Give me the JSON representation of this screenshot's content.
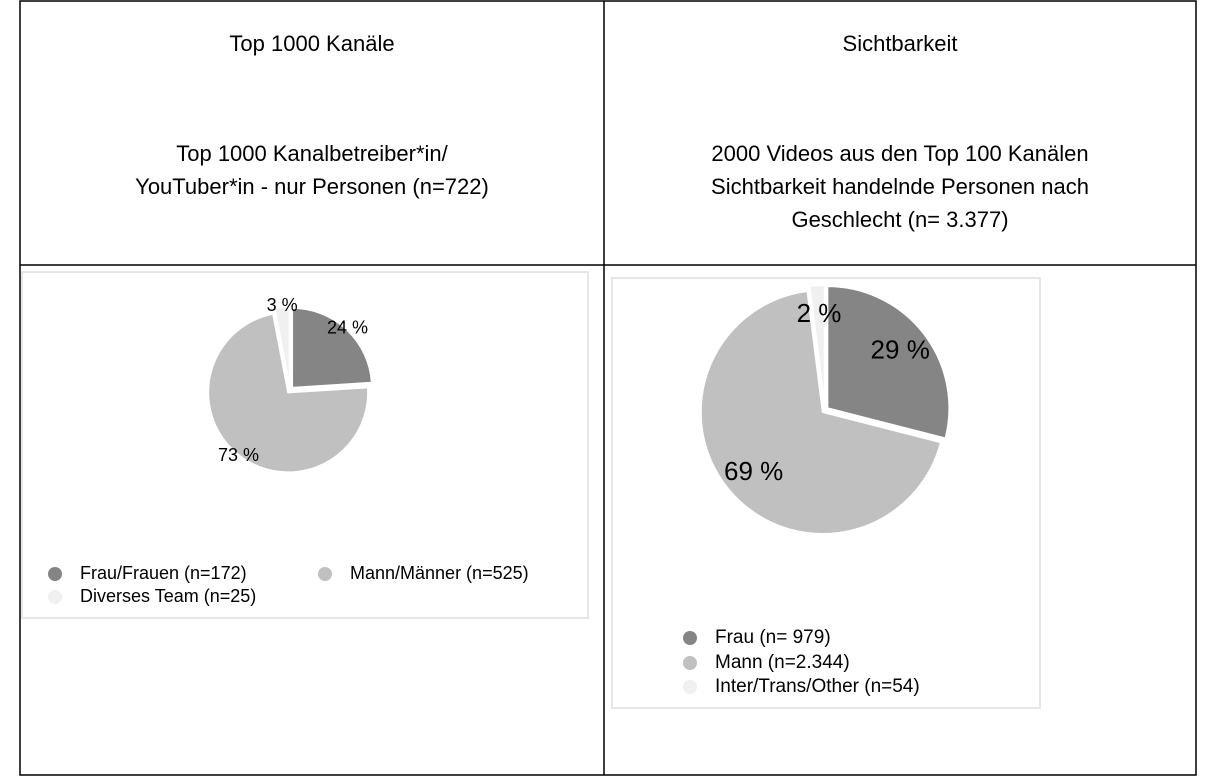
{
  "table": {
    "headers": [
      {
        "title": "Top 1000 Kanäle",
        "subtitle": [
          "Top 1000 Kanalbetreiber*in/",
          "YouTuber*in - nur Personen (n=722)"
        ]
      },
      {
        "title": "Sichtbarkeit",
        "subtitle": [
          "2000 Videos aus den Top 100 Kanälen",
          "Sichtbarkeit handelnde Personen nach",
          "Geschlecht (n= 3.377)"
        ]
      }
    ]
  },
  "chart_data": [
    {
      "type": "pie",
      "categories": [
        "Frau/Frauen (n=172)",
        "Mann/Männer (n=525)",
        "Diverses Team (n=25)"
      ],
      "values": [
        24,
        73,
        3
      ],
      "value_labels": [
        "24 %",
        "73 %",
        "3 %"
      ],
      "colors": [
        "#858585",
        "#c0c0c0",
        "#f0f0f0"
      ]
    },
    {
      "type": "pie",
      "categories": [
        "Frau  (n= 979)",
        "Mann (n=2.344)",
        "Inter/Trans/Other (n=54)"
      ],
      "values": [
        29,
        69,
        2
      ],
      "value_labels": [
        "29 %",
        "69 %",
        "2 %"
      ],
      "colors": [
        "#858585",
        "#c0c0c0",
        "#f0f0f0"
      ]
    }
  ]
}
